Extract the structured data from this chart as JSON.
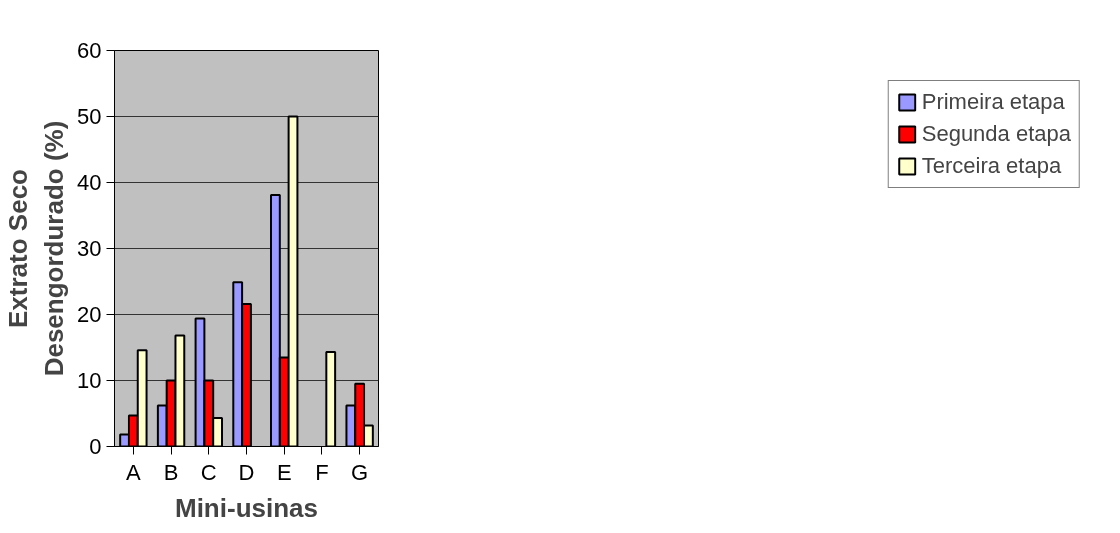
{
  "chart_data": {
    "type": "bar",
    "xlabel": "Mini-usinas",
    "ylabel": "Extrato Seco\nDesengordurado (%)",
    "categories": [
      "A",
      "B",
      "C",
      "D",
      "E",
      "F",
      "G"
    ],
    "series": [
      {
        "name": "Primeira etapa",
        "color": "#9999ff",
        "values": [
          1.8,
          6.2,
          19.4,
          24.9,
          38.1,
          null,
          6.2
        ]
      },
      {
        "name": "Segunda etapa",
        "color": "#ff0000",
        "values": [
          4.7,
          10,
          10,
          21.6,
          13.5,
          null,
          9.5
        ]
      },
      {
        "name": "Terceira etapa",
        "color": "#ffffcc",
        "values": [
          14.6,
          16.8,
          4.3,
          null,
          50,
          14.3,
          3.2
        ]
      }
    ],
    "ylim": [
      0,
      60
    ],
    "yticks": [
      0,
      10,
      20,
      30,
      40,
      50,
      60
    ],
    "grid": "y",
    "legend": "right"
  }
}
